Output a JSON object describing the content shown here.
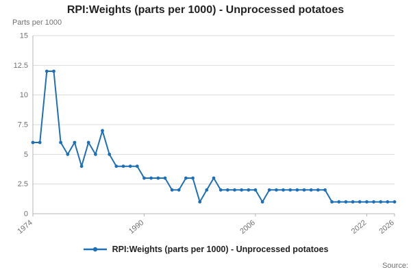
{
  "title": "RPI:Weights (parts per 1000) - Unprocessed potatoes",
  "y_axis_unit_label": "Parts per 1000",
  "source_label": "Source:",
  "legend": {
    "label": "RPI:Weights (parts per 1000) - Unprocessed potatoes",
    "marker": "line-with-dot"
  },
  "colors": {
    "line": "#1d70b8",
    "grid": "#d9d9d9",
    "axis": "#b3b3b3",
    "tick_text": "#707071",
    "title_text": "#222222"
  },
  "chart_data": {
    "type": "line",
    "title": "RPI:Weights (parts per 1000) - Unprocessed potatoes",
    "ylabel": "Parts per 1000",
    "xlabel": "",
    "ylim": [
      0,
      15
    ],
    "yticks": [
      0,
      2.5,
      5,
      7.5,
      10,
      12.5,
      15
    ],
    "xticks": [
      1974,
      1990,
      2006,
      2022,
      2026
    ],
    "grid": true,
    "legend_position": "bottom",
    "x": [
      1974,
      1975,
      1976,
      1977,
      1978,
      1979,
      1980,
      1981,
      1982,
      1983,
      1984,
      1985,
      1986,
      1987,
      1988,
      1989,
      1990,
      1991,
      1992,
      1993,
      1994,
      1995,
      1996,
      1997,
      1998,
      1999,
      2000,
      2001,
      2002,
      2003,
      2004,
      2005,
      2006,
      2007,
      2008,
      2009,
      2010,
      2011,
      2012,
      2013,
      2014,
      2015,
      2016,
      2017,
      2018,
      2019,
      2020,
      2021,
      2022,
      2023,
      2024,
      2025,
      2026
    ],
    "series": [
      {
        "name": "RPI:Weights (parts per 1000) - Unprocessed potatoes",
        "values": [
          6,
          6,
          12,
          12,
          6,
          5,
          6,
          4,
          6,
          5,
          7,
          5,
          4,
          4,
          4,
          4,
          3,
          3,
          3,
          3,
          2,
          2,
          3,
          3,
          1,
          2,
          3,
          2,
          2,
          2,
          2,
          2,
          2,
          1,
          2,
          2,
          2,
          2,
          2,
          2,
          2,
          2,
          2,
          1,
          1,
          1,
          1,
          1,
          1,
          1,
          1,
          1,
          1
        ]
      }
    ]
  }
}
